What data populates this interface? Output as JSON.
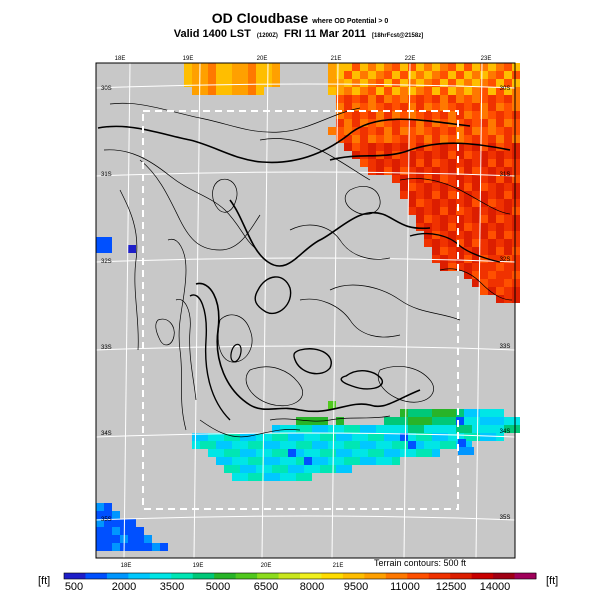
{
  "title": {
    "main": "OD Cloudbase",
    "subtitle": "where OD Potential > 0",
    "valid_label": "Valid 1400 LST",
    "valid_code": "(1200Z)",
    "date": "FRI 11 Mar 2011",
    "forecast": "[18hrFcst@2158z]"
  },
  "map": {
    "top_longitudes": [
      "18E",
      "19E",
      "20E",
      "21E",
      "22E",
      "23E"
    ],
    "bottom_longitudes": [
      "18E",
      "19E",
      "20E",
      "21E"
    ],
    "left_latitudes": [
      "30S",
      "31S",
      "32S",
      "33S",
      "34S",
      "35S"
    ],
    "right_latitudes": [
      "30S",
      "31S",
      "32S",
      "33S",
      "34S",
      "35S"
    ],
    "terrain_note": "Terrain contours: 500 ft",
    "background_color": "#c8c8c8"
  },
  "colorbar": {
    "unit_left": "[ft]",
    "unit_right": "[ft]",
    "tick_labels": [
      "500",
      "2000",
      "3500",
      "5000",
      "6500",
      "8000",
      "9500",
      "11000",
      "12500",
      "14000"
    ],
    "colors": [
      "#1e1ec8",
      "#0050ff",
      "#0096ff",
      "#00c8ff",
      "#00e6e6",
      "#00e6b4",
      "#00c878",
      "#28b428",
      "#50c81e",
      "#8cdc1e",
      "#c8e61e",
      "#f0f01e",
      "#ffdc00",
      "#ffbe00",
      "#ffa000",
      "#ff7800",
      "#ff5000",
      "#f03200",
      "#dc1e00",
      "#c80000",
      "#a00014",
      "#a0005a"
    ]
  }
}
